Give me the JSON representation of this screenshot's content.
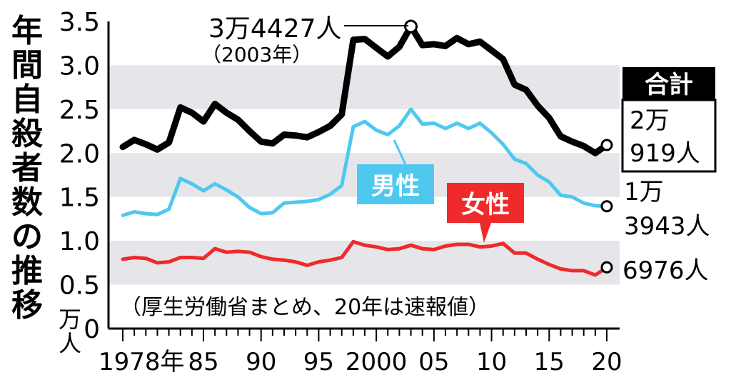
{
  "chart_data": {
    "type": "line",
    "title": "年間自殺者数の推移",
    "y_unit": "万人",
    "note": "（厚生労働省まとめ、20年は速報値）",
    "ylim": [
      0,
      3.5
    ],
    "yticks": [
      0,
      0.5,
      1.0,
      1.5,
      2.0,
      2.5,
      3.0,
      3.5
    ],
    "ytick_labels": [
      "0",
      "0.5",
      "1.0",
      "1.5",
      "2.0",
      "2.5",
      "3.0",
      "3.5"
    ],
    "xlim": [
      1978,
      2020
    ],
    "xticks": [
      1978,
      1985,
      1990,
      1995,
      2000,
      2005,
      2010,
      2015,
      2020
    ],
    "xtick_labels": [
      "1978年",
      "85",
      "90",
      "95",
      "2000",
      "05",
      "10",
      "15",
      "20"
    ],
    "shaded_bands": [
      [
        2.5,
        3.0
      ],
      [
        1.5,
        2.0
      ],
      [
        0.5,
        1.0
      ]
    ],
    "years": [
      1978,
      1979,
      1980,
      1981,
      1982,
      1983,
      1984,
      1985,
      1986,
      1987,
      1988,
      1989,
      1990,
      1991,
      1992,
      1993,
      1994,
      1995,
      1996,
      1997,
      1998,
      1999,
      2000,
      2001,
      2002,
      2003,
      2004,
      2005,
      2006,
      2007,
      2008,
      2009,
      2010,
      2011,
      2012,
      2013,
      2014,
      2015,
      2016,
      2017,
      2018,
      2019,
      2020
    ],
    "series": [
      {
        "name": "合計",
        "color": "#000000",
        "values": [
          2.07,
          2.15,
          2.1,
          2.04,
          2.12,
          2.52,
          2.46,
          2.36,
          2.56,
          2.46,
          2.38,
          2.25,
          2.13,
          2.11,
          2.21,
          2.2,
          2.18,
          2.24,
          2.31,
          2.44,
          3.29,
          3.3,
          3.2,
          3.1,
          3.21,
          3.4427,
          3.23,
          3.24,
          3.22,
          3.31,
          3.24,
          3.27,
          3.17,
          3.07,
          2.78,
          2.72,
          2.54,
          2.4,
          2.19,
          2.13,
          2.08,
          2.0,
          2.0919
        ]
      },
      {
        "name": "男性",
        "color": "#4fc8ef",
        "values": [
          1.29,
          1.33,
          1.31,
          1.3,
          1.36,
          1.71,
          1.65,
          1.57,
          1.65,
          1.58,
          1.5,
          1.38,
          1.31,
          1.32,
          1.43,
          1.44,
          1.45,
          1.47,
          1.53,
          1.63,
          2.3,
          2.36,
          2.26,
          2.21,
          2.31,
          2.5,
          2.33,
          2.34,
          2.28,
          2.34,
          2.28,
          2.34,
          2.23,
          2.1,
          1.93,
          1.88,
          1.75,
          1.67,
          1.52,
          1.5,
          1.43,
          1.4,
          1.3943
        ]
      },
      {
        "name": "女性",
        "color": "#ee2a2a",
        "values": [
          0.79,
          0.81,
          0.8,
          0.75,
          0.76,
          0.81,
          0.81,
          0.8,
          0.91,
          0.87,
          0.88,
          0.87,
          0.82,
          0.79,
          0.78,
          0.76,
          0.72,
          0.76,
          0.78,
          0.81,
          0.99,
          0.95,
          0.93,
          0.9,
          0.91,
          0.95,
          0.91,
          0.9,
          0.94,
          0.96,
          0.96,
          0.93,
          0.94,
          0.97,
          0.86,
          0.86,
          0.79,
          0.73,
          0.68,
          0.66,
          0.66,
          0.61,
          0.6976
        ]
      }
    ],
    "annotations": {
      "peak_value": "3万4427人",
      "peak_year": "（2003年）",
      "total_line1": "2万",
      "total_line2": "919人",
      "male_line1": "1万",
      "male_line2": "3943人",
      "female_value": "6976人"
    }
  }
}
